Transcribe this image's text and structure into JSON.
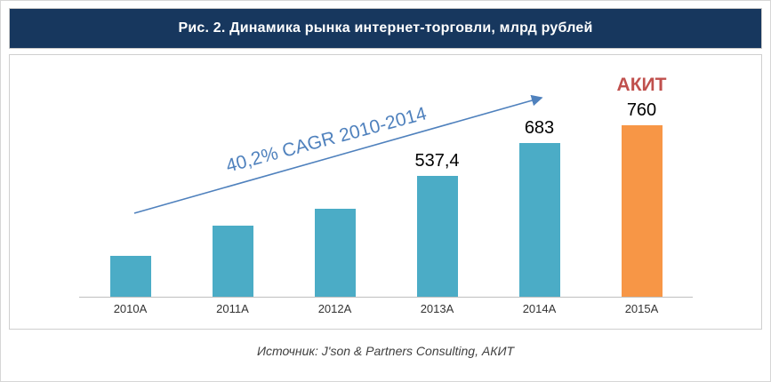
{
  "header": {
    "title": "Рис. 2. Динамика рынка интернет-торговли, млрд рублей"
  },
  "chart_data": {
    "type": "bar",
    "title": "Рис. 2. Динамика рынка интернет-торговли, млрд рублей",
    "xlabel": "",
    "ylabel": "млрд рублей",
    "categories": [
      "2010A",
      "2011A",
      "2012A",
      "2013A",
      "2014A",
      "2015A"
    ],
    "values": [
      180,
      315,
      390,
      537.4,
      683,
      760
    ],
    "data_labels": [
      "",
      "",
      "",
      "537,4",
      "683",
      "760"
    ],
    "top_labels": [
      "",
      "",
      "",
      "",
      "",
      "АКИТ"
    ],
    "bar_colors": [
      "#4BACC6",
      "#4BACC6",
      "#4BACC6",
      "#4BACC6",
      "#4BACC6",
      "#F79646"
    ],
    "ylim": [
      0,
      800
    ],
    "grid": false,
    "legend": false,
    "annotations": {
      "cagr_text": "40,2% CAGR 2010-2014",
      "akit_text": "АКИТ"
    }
  },
  "annotations": {
    "cagr": "40,2% CAGR 2010-2014",
    "akit": "АКИТ"
  },
  "footer": {
    "source": "Источник: J'son & Partners Consulting, АКИТ"
  },
  "colors": {
    "header_bg": "#17375E",
    "bar_teal": "#4BACC6",
    "bar_orange": "#F79646",
    "cagr_blue": "#4F81BD",
    "akit_red": "#C0504D",
    "axis_gray": "#bfbfbf"
  }
}
